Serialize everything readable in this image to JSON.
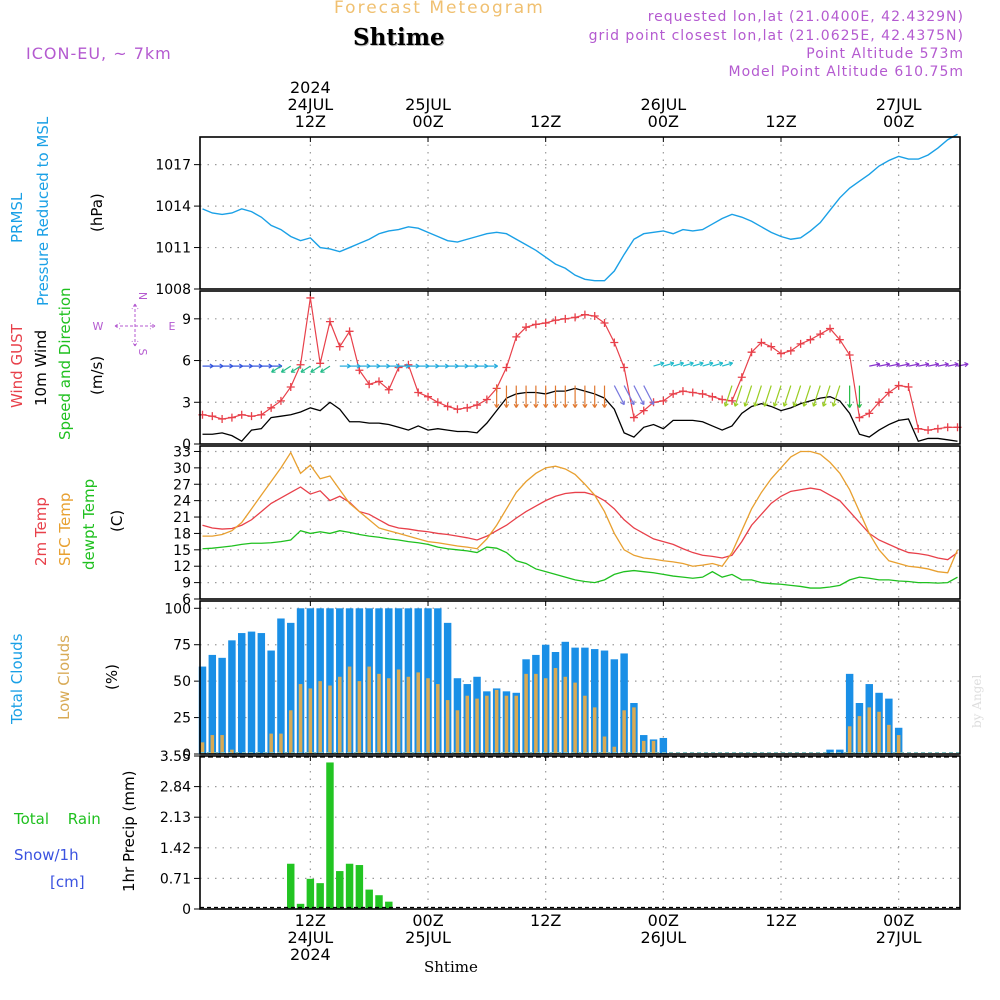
{
  "header": {
    "title": "Forecast Meteogram",
    "location": "Shtime",
    "model": "ICON-EU, ~ 7km",
    "requested": "requested lon,lat (21.0400E, 42.4329N)",
    "grid_point": "grid point closest lon,lat (21.0625E, 42.4375N)",
    "point_altitude": "Point Altitude 573m",
    "model_altitude": "Model Point Altitude 610.75m",
    "footer_location": "Shtime",
    "credit": "by Angel"
  },
  "time_axis": {
    "top_labels": [
      {
        "lines": [
          "2024",
          "24JUL",
          "12Z"
        ],
        "t": 12
      },
      {
        "lines": [
          "25JUL",
          "00Z"
        ],
        "t": 24
      },
      {
        "lines": [
          "12Z"
        ],
        "t": 36
      },
      {
        "lines": [
          "26JUL",
          "00Z"
        ],
        "t": 48
      },
      {
        "lines": [
          "12Z"
        ],
        "t": 60
      },
      {
        "lines": [
          "27JUL",
          "00Z"
        ],
        "t": 72
      }
    ],
    "bottom_labels": [
      {
        "lines": [
          "12Z",
          "24JUL",
          "2024"
        ],
        "t": 12
      },
      {
        "lines": [
          "00Z",
          "25JUL"
        ],
        "t": 24
      },
      {
        "lines": [
          "12Z"
        ],
        "t": 36
      },
      {
        "lines": [
          "00Z",
          "26JUL"
        ],
        "t": 48
      },
      {
        "lines": [
          "12Z"
        ],
        "t": 60
      },
      {
        "lines": [
          "00Z",
          "27JUL"
        ],
        "t": 72
      }
    ]
  },
  "colors": {
    "pressure": "#1aa0e6",
    "gust": "#e8404a",
    "wind": "#000000",
    "temp2m": "#e8404a",
    "sfc": "#e8a030",
    "dewpt": "#1fc01f",
    "total_clouds": "#1a8fe6",
    "low_clouds": "#d8aa55",
    "rain": "#22c422",
    "snow": "#3a52e0",
    "label_purple": "#b45ad0"
  },
  "labels": {
    "pressure": [
      "PRMSL",
      "Pressure Reduced to MSL",
      "(hPa)"
    ],
    "wind": [
      "Wind GUST",
      "10m Wind",
      "Speed and Direction",
      "(m/s)"
    ],
    "compass": [
      "N",
      "S",
      "W",
      "E"
    ],
    "temp": [
      "2m Temp",
      "SFC Temp",
      "dewpt Temp",
      "(C)"
    ],
    "clouds": [
      "Total Clouds",
      "Low Clouds",
      "(%)"
    ],
    "precip": [
      "Total Rain",
      "Snow/1h",
      "[cm]",
      "1hr Precip (mm)"
    ]
  },
  "chart_data": [
    {
      "type": "line",
      "panel": "pressure",
      "ylabel": "(hPa)",
      "ylim": [
        1008,
        1019
      ],
      "yticks": [
        "1008",
        "1011",
        "1014",
        "1017"
      ],
      "series": [
        {
          "name": "PRMSL",
          "values": [
            1013.8,
            1013.5,
            1013.4,
            1013.5,
            1013.8,
            1013.6,
            1013.2,
            1012.6,
            1012.3,
            1011.8,
            1011.5,
            1011.7,
            1011.0,
            1010.9,
            1010.7,
            1011.0,
            1011.3,
            1011.6,
            1012.0,
            1012.2,
            1012.3,
            1012.5,
            1012.4,
            1012.1,
            1011.8,
            1011.5,
            1011.4,
            1011.6,
            1011.8,
            1012.0,
            1012.1,
            1012.0,
            1011.6,
            1011.2,
            1010.8,
            1010.3,
            1009.8,
            1009.5,
            1009.0,
            1008.7,
            1008.6,
            1008.6,
            1009.3,
            1010.5,
            1011.6,
            1012.0,
            1012.1,
            1012.2,
            1012.0,
            1012.3,
            1012.2,
            1012.3,
            1012.7,
            1013.1,
            1013.4,
            1013.2,
            1012.9,
            1012.5,
            1012.1,
            1011.8,
            1011.6,
            1011.7,
            1012.2,
            1012.8,
            1013.7,
            1014.6,
            1015.3,
            1015.8,
            1016.3,
            1016.9,
            1017.3,
            1017.6,
            1017.4,
            1017.4,
            1017.7,
            1018.2,
            1018.8,
            1019.2
          ]
        }
      ]
    },
    {
      "type": "line",
      "panel": "wind",
      "ylabel": "(m/s)",
      "ylim": [
        0,
        11
      ],
      "yticks": [
        "0",
        "3",
        "6",
        "9"
      ],
      "series": [
        {
          "name": "Wind GUST",
          "values": [
            2.1,
            2.0,
            1.8,
            1.9,
            2.1,
            2.0,
            2.1,
            2.6,
            3.1,
            4.1,
            5.7,
            10.5,
            5.8,
            8.8,
            7.0,
            8.1,
            5.3,
            4.3,
            4.5,
            3.9,
            5.5,
            5.7,
            3.7,
            3.4,
            3.0,
            2.7,
            2.5,
            2.6,
            2.8,
            3.2,
            4.0,
            5.5,
            7.7,
            8.4,
            8.6,
            8.7,
            8.9,
            9.0,
            9.1,
            9.3,
            9.2,
            8.7,
            7.3,
            5.5,
            1.9,
            2.4,
            3.0,
            3.1,
            3.6,
            3.8,
            3.7,
            3.6,
            3.4,
            3.2,
            3.1,
            4.8,
            6.6,
            7.3,
            7.0,
            6.5,
            6.7,
            7.2,
            7.5,
            7.9,
            8.3,
            7.5,
            6.4,
            1.9,
            2.2,
            3.0,
            3.7,
            4.2,
            4.1,
            1.1,
            1.0,
            1.1,
            1.2,
            1.2
          ]
        },
        {
          "name": "10m Wind",
          "values": [
            0.7,
            0.7,
            0.8,
            0.6,
            0.2,
            1.0,
            1.1,
            1.9,
            2.0,
            2.1,
            2.3,
            2.6,
            2.4,
            3.0,
            2.5,
            1.6,
            1.6,
            1.5,
            1.5,
            1.4,
            1.2,
            1.0,
            1.3,
            1.0,
            1.1,
            1.0,
            0.9,
            0.9,
            0.8,
            1.5,
            2.4,
            3.3,
            3.6,
            3.7,
            3.7,
            3.6,
            3.8,
            3.8,
            4.0,
            3.8,
            3.6,
            3.3,
            2.5,
            0.8,
            0.5,
            1.2,
            1.4,
            1.1,
            1.7,
            1.7,
            1.7,
            1.6,
            1.3,
            1.0,
            1.3,
            2.2,
            2.7,
            2.9,
            2.7,
            2.4,
            2.6,
            2.9,
            3.1,
            3.3,
            3.4,
            3.1,
            2.2,
            0.7,
            0.5,
            1.0,
            1.4,
            1.7,
            1.8,
            0.2,
            0.4,
            0.4,
            0.3,
            0.2
          ]
        }
      ]
    },
    {
      "type": "line",
      "panel": "temperature",
      "ylabel": "(C)",
      "ylim": [
        6,
        34
      ],
      "yticks": [
        "6",
        "9",
        "12",
        "15",
        "18",
        "21",
        "24",
        "27",
        "30",
        "33"
      ],
      "series": [
        {
          "name": "2m Temp",
          "values": [
            19.5,
            19.0,
            18.8,
            18.9,
            19.5,
            20.5,
            22.0,
            23.5,
            24.5,
            25.5,
            26.5,
            25.2,
            25.8,
            24.0,
            24.8,
            23.7,
            22.0,
            21.5,
            20.5,
            19.5,
            19.0,
            18.8,
            18.5,
            18.3,
            18.0,
            17.8,
            17.5,
            17.2,
            16.8,
            17.5,
            18.5,
            19.5,
            20.8,
            22.0,
            23.0,
            24.0,
            24.8,
            25.3,
            25.5,
            25.5,
            25.0,
            24.0,
            22.5,
            20.5,
            19.0,
            18.0,
            17.0,
            16.5,
            16.0,
            15.2,
            14.5,
            14.0,
            13.8,
            13.5,
            14.0,
            16.5,
            19.5,
            21.5,
            23.5,
            24.8,
            25.7,
            26.0,
            26.3,
            26.0,
            25.0,
            24.0,
            22.0,
            20.0,
            18.0,
            16.8,
            16.0,
            15.2,
            14.5,
            14.3,
            14.0,
            13.5,
            13.2,
            14.5
          ]
        },
        {
          "name": "SFC Temp",
          "values": [
            17.5,
            17.5,
            17.8,
            18.5,
            20.0,
            22.5,
            25.0,
            27.5,
            30.0,
            32.8,
            29.0,
            30.5,
            28.0,
            28.5,
            26.0,
            23.5,
            22.0,
            20.5,
            19.0,
            18.5,
            18.0,
            17.5,
            17.0,
            16.5,
            16.3,
            16.0,
            15.7,
            15.5,
            15.2,
            17.0,
            19.5,
            22.5,
            25.5,
            27.5,
            29.0,
            30.0,
            30.3,
            29.8,
            28.8,
            27.0,
            25.0,
            22.0,
            18.0,
            15.0,
            14.0,
            13.5,
            13.3,
            13.0,
            12.8,
            12.5,
            12.0,
            12.2,
            12.5,
            12.0,
            14.5,
            18.5,
            22.5,
            25.5,
            28.0,
            30.0,
            32.0,
            33.0,
            33.0,
            32.5,
            31.0,
            29.0,
            26.0,
            22.0,
            18.0,
            15.0,
            13.0,
            12.5,
            12.0,
            11.8,
            11.5,
            11.0,
            10.8,
            15.0
          ]
        },
        {
          "name": "dewpt Temp",
          "values": [
            15.2,
            15.3,
            15.5,
            15.7,
            16.0,
            16.2,
            16.2,
            16.3,
            16.5,
            16.8,
            18.5,
            18.0,
            18.3,
            18.0,
            18.5,
            18.2,
            17.8,
            17.5,
            17.3,
            17.0,
            16.8,
            16.5,
            16.3,
            16.0,
            15.5,
            15.2,
            15.0,
            14.8,
            14.5,
            15.5,
            15.3,
            14.5,
            13.0,
            12.5,
            11.5,
            11.0,
            10.5,
            10.0,
            9.5,
            9.2,
            9.0,
            9.5,
            10.5,
            11.0,
            11.2,
            11.0,
            10.8,
            10.5,
            10.2,
            10.0,
            9.8,
            10.0,
            11.0,
            10.0,
            10.5,
            9.5,
            9.5,
            9.0,
            8.8,
            8.7,
            8.5,
            8.3,
            8.0,
            8.0,
            8.2,
            8.5,
            9.5,
            10.0,
            9.8,
            9.5,
            9.5,
            9.3,
            9.2,
            9.0,
            9.0,
            8.9,
            9.0,
            10.0
          ]
        }
      ]
    },
    {
      "type": "bar",
      "panel": "clouds",
      "ylabel": "(%)",
      "ylim": [
        0,
        105
      ],
      "yticks": [
        "0",
        "25",
        "50",
        "75",
        "100"
      ],
      "series": [
        {
          "name": "Total Clouds",
          "values": [
            60,
            68,
            66,
            78,
            83,
            84,
            83,
            71,
            93,
            90,
            100,
            100,
            100,
            100,
            100,
            100,
            100,
            100,
            100,
            100,
            100,
            100,
            100,
            100,
            100,
            90,
            52,
            48,
            53,
            43,
            45,
            43,
            42,
            65,
            68,
            75,
            70,
            77,
            73,
            73,
            72,
            71,
            65,
            69,
            35,
            13,
            10,
            11,
            0,
            0,
            0,
            0,
            0,
            0,
            0,
            0,
            0,
            0,
            0,
            0,
            0,
            0,
            0,
            0,
            3,
            3,
            55,
            35,
            48,
            42,
            38,
            18,
            0,
            0,
            0,
            0,
            0,
            0
          ]
        },
        {
          "name": "Low Clouds",
          "values": [
            8,
            13,
            13,
            3,
            0,
            0,
            0,
            14,
            14,
            30,
            48,
            45,
            50,
            47,
            53,
            60,
            50,
            60,
            55,
            52,
            58,
            53,
            56,
            52,
            48,
            37,
            30,
            40,
            38,
            40,
            44,
            40,
            40,
            55,
            55,
            52,
            59,
            53,
            49,
            40,
            32,
            12,
            5,
            30,
            32,
            9,
            9,
            0,
            0,
            0,
            0,
            0,
            0,
            0,
            0,
            0,
            0,
            0,
            0,
            0,
            0,
            0,
            0,
            0,
            0,
            0,
            19,
            26,
            32,
            29,
            20,
            13,
            0,
            0,
            0,
            0,
            0,
            0
          ]
        }
      ]
    },
    {
      "type": "bar",
      "panel": "precipitation",
      "ylabel": "1hr Precip (mm)",
      "ylim": [
        0,
        3.55
      ],
      "yticks": [
        "0",
        "0.71",
        "1.42",
        "2.13",
        "2.84",
        "3.55"
      ],
      "series": [
        {
          "name": "Total Rain",
          "values": [
            0,
            0,
            0,
            0,
            0,
            0,
            0,
            0,
            0,
            1.05,
            0.12,
            0.7,
            0.6,
            3.4,
            0.88,
            1.05,
            1.02,
            0.45,
            0.32,
            0.17,
            0,
            0,
            0,
            0,
            0,
            0,
            0,
            0,
            0,
            0,
            0,
            0,
            0,
            0,
            0,
            0,
            0,
            0,
            0,
            0,
            0,
            0,
            0,
            0,
            0,
            0,
            0,
            0,
            0,
            0,
            0,
            0,
            0,
            0,
            0,
            0,
            0,
            0,
            0,
            0,
            0,
            0,
            0,
            0,
            0,
            0,
            0,
            0,
            0,
            0,
            0,
            0,
            0,
            0,
            0,
            0,
            0,
            0
          ]
        }
      ]
    }
  ]
}
